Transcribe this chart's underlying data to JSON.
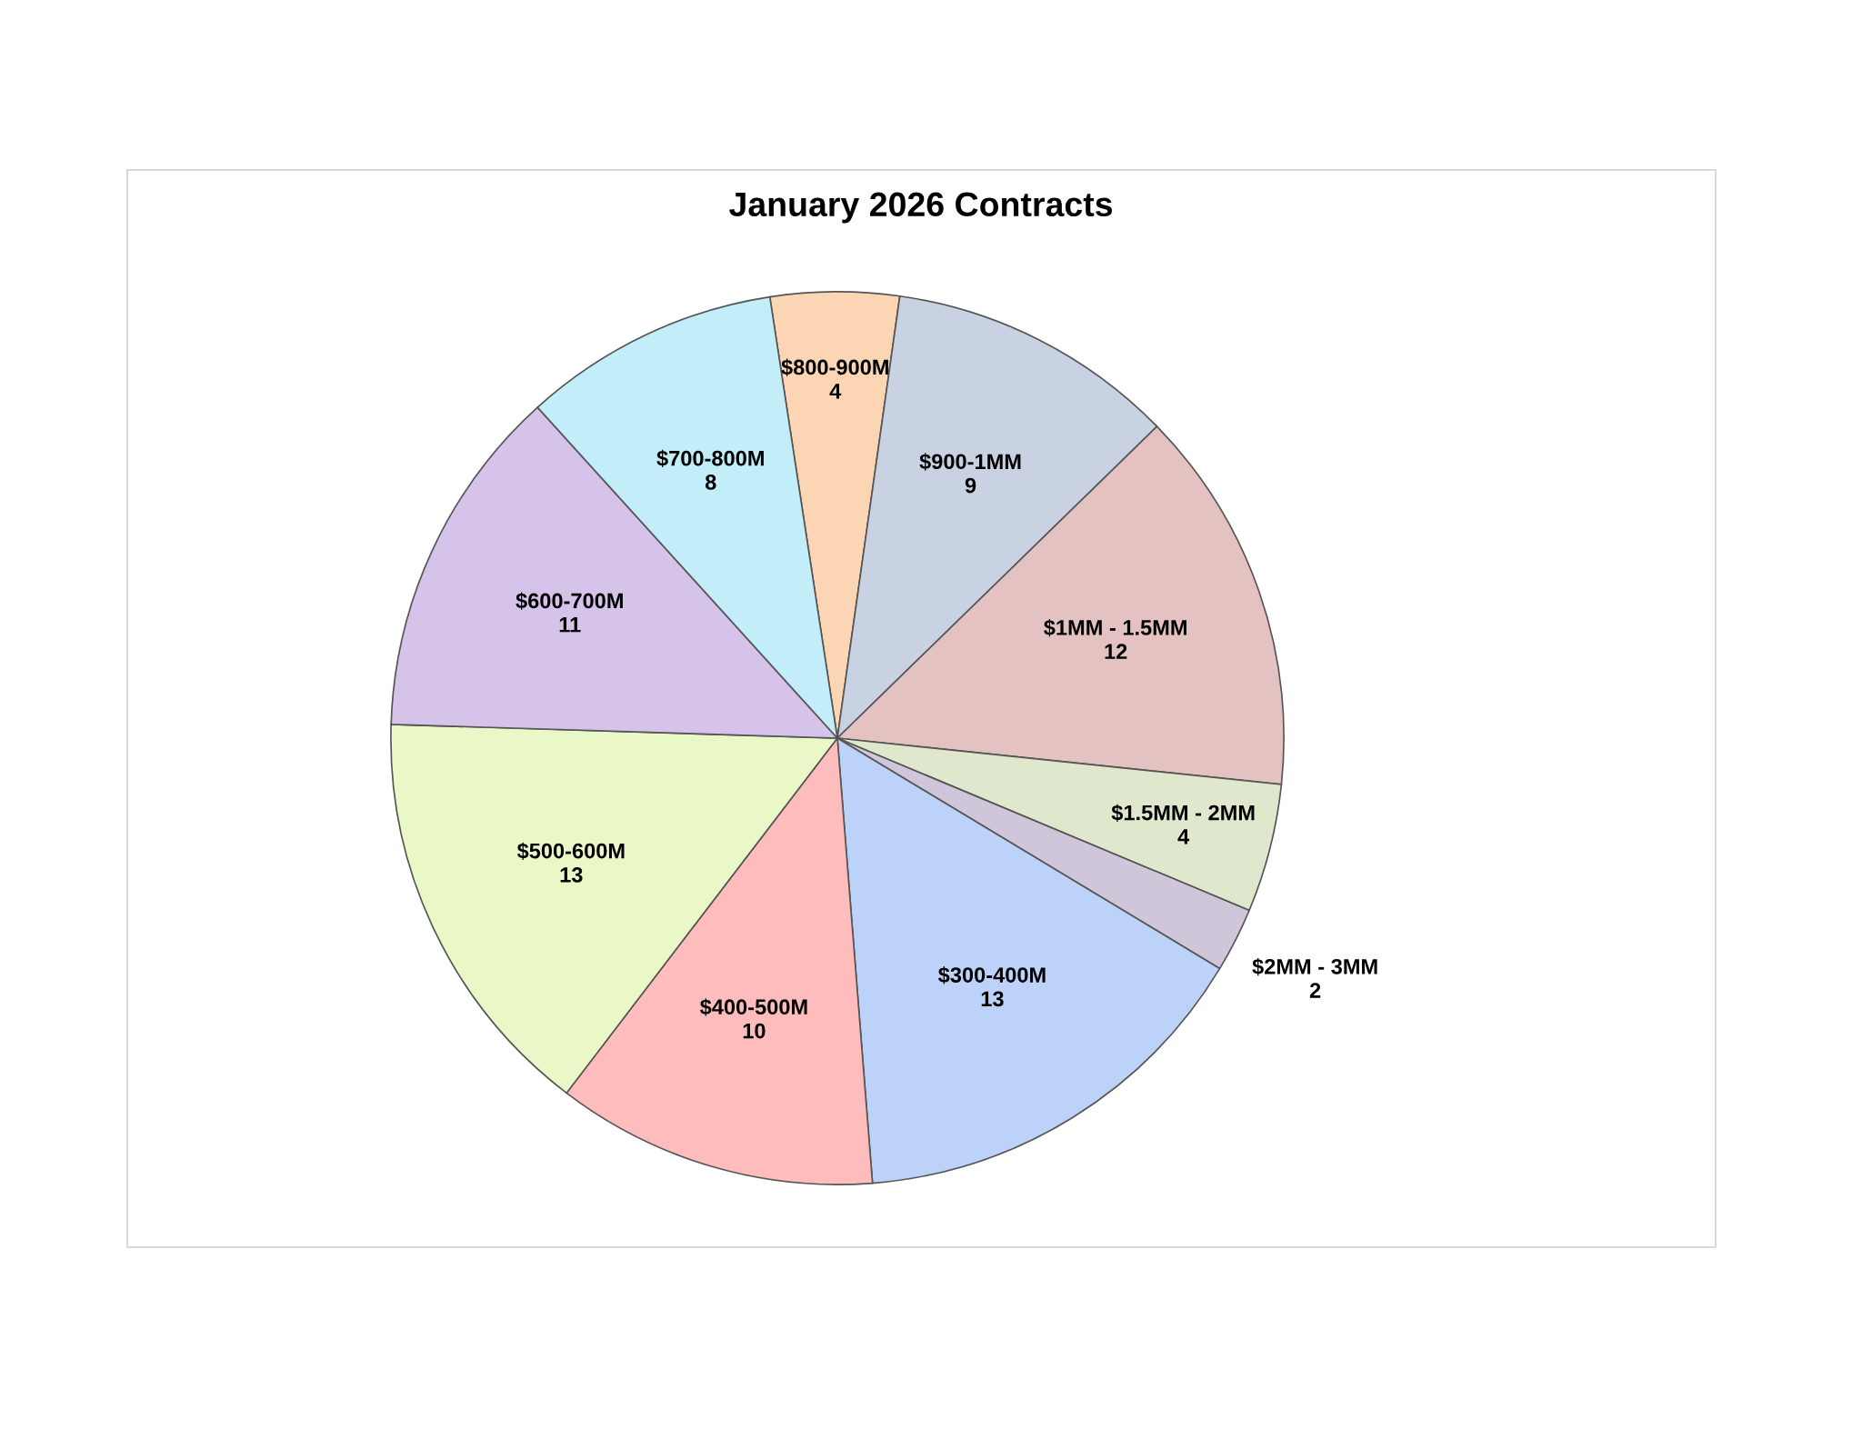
{
  "chart_data": {
    "type": "pie",
    "title": "January 2026 Contracts",
    "categories": [
      "$800-900M",
      "$900-1MM",
      "$1MM - 1.5MM",
      "$1.5MM - 2MM",
      "$2MM - 3MM",
      "$300-400M",
      "$400-500M",
      "$500-600M",
      "$600-700M",
      "$700-800M"
    ],
    "values": [
      4,
      9,
      12,
      4,
      2,
      13,
      10,
      13,
      11,
      8
    ],
    "colors": [
      "#fcd5b5",
      "#c9d2e2",
      "#e5c2c2",
      "#dfe8cc",
      "#cfc6d9",
      "#bcd2f8",
      "#ffbcbc",
      "#eaf8c8",
      "#d5c3ea",
      "#c2edf9"
    ],
    "data_labels": true
  }
}
